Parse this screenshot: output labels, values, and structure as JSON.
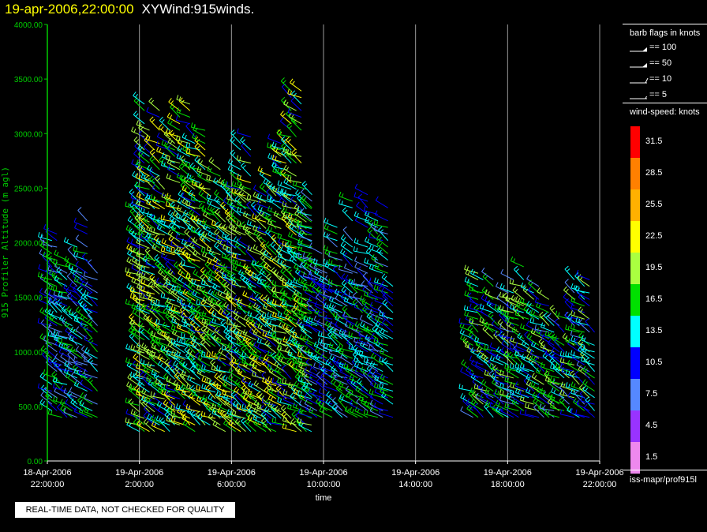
{
  "header": {
    "timestamp": "19-apr-2006,22:00:00",
    "product_name": "XYWind:915winds."
  },
  "qc_note": "REAL-TIME DATA, NOT CHECKED FOR QUALITY",
  "legend": {
    "barb_title": "barb flags in knots",
    "barb_flags": [
      {
        "label": "== 100",
        "kind": "pennant"
      },
      {
        "label": "== 50",
        "kind": "pennant"
      },
      {
        "label": "== 10",
        "kind": "full"
      },
      {
        "label": "== 5",
        "kind": "half"
      }
    ],
    "speed_title": "wind-speed: knots",
    "colorbar": [
      {
        "label": "31.5",
        "color": "#ff0000"
      },
      {
        "label": "28.5",
        "color": "#ff8000"
      },
      {
        "label": "25.5",
        "color": "#ffb000"
      },
      {
        "label": "22.5",
        "color": "#ffff00"
      },
      {
        "label": "19.5",
        "color": "#aaff40"
      },
      {
        "label": "16.5",
        "color": "#00e000"
      },
      {
        "label": "13.5",
        "color": "#00ffff"
      },
      {
        "label": "10.5",
        "color": "#0000ff"
      },
      {
        "label": "7.5",
        "color": "#5588ff"
      },
      {
        "label": "4.5",
        "color": "#9933ff"
      },
      {
        "label": "1.5",
        "color": "#ee88ee"
      }
    ],
    "source": "iss-mapr/prof915l"
  },
  "chart_data": {
    "type": "scatter",
    "ylabel": "915 Profiler Altitude (m agl)",
    "xlabel": "time",
    "ylim": [
      0,
      4000
    ],
    "yticks": [
      "0.00",
      "500.00",
      "1000.00",
      "1500.00",
      "2000.00",
      "2500.00",
      "3000.00",
      "3500.00",
      "4000.00"
    ],
    "xlim_hours": [
      0,
      24
    ],
    "xticks": [
      {
        "date": "18-Apr-2006",
        "time": "22:00:00"
      },
      {
        "date": "19-Apr-2006",
        "time": "2:00:00"
      },
      {
        "date": "19-Apr-2006",
        "time": "6:00:00"
      },
      {
        "date": "19-Apr-2006",
        "time": "10:00:00"
      },
      {
        "date": "19-Apr-2006",
        "time": "14:00:00"
      },
      {
        "date": "19-Apr-2006",
        "time": "18:00:00"
      },
      {
        "date": "19-Apr-2006",
        "time": "22:00:00"
      }
    ],
    "grid": "vertical",
    "series_blocks": [
      {
        "t_start": 0.2,
        "t_end": 2.3,
        "alt_min": 400,
        "alt_max": 2250,
        "speed_kt": 12
      },
      {
        "t_start": 4.0,
        "t_end": 11.5,
        "alt_min": 270,
        "alt_max": 3600,
        "speed_kt": 17
      },
      {
        "t_start": 11.5,
        "t_end": 15.2,
        "alt_min": 400,
        "alt_max": 2600,
        "speed_kt": 12
      },
      {
        "t_start": 18.5,
        "t_end": 23.8,
        "alt_min": 400,
        "alt_max": 1800,
        "speed_kt": 14
      }
    ]
  }
}
